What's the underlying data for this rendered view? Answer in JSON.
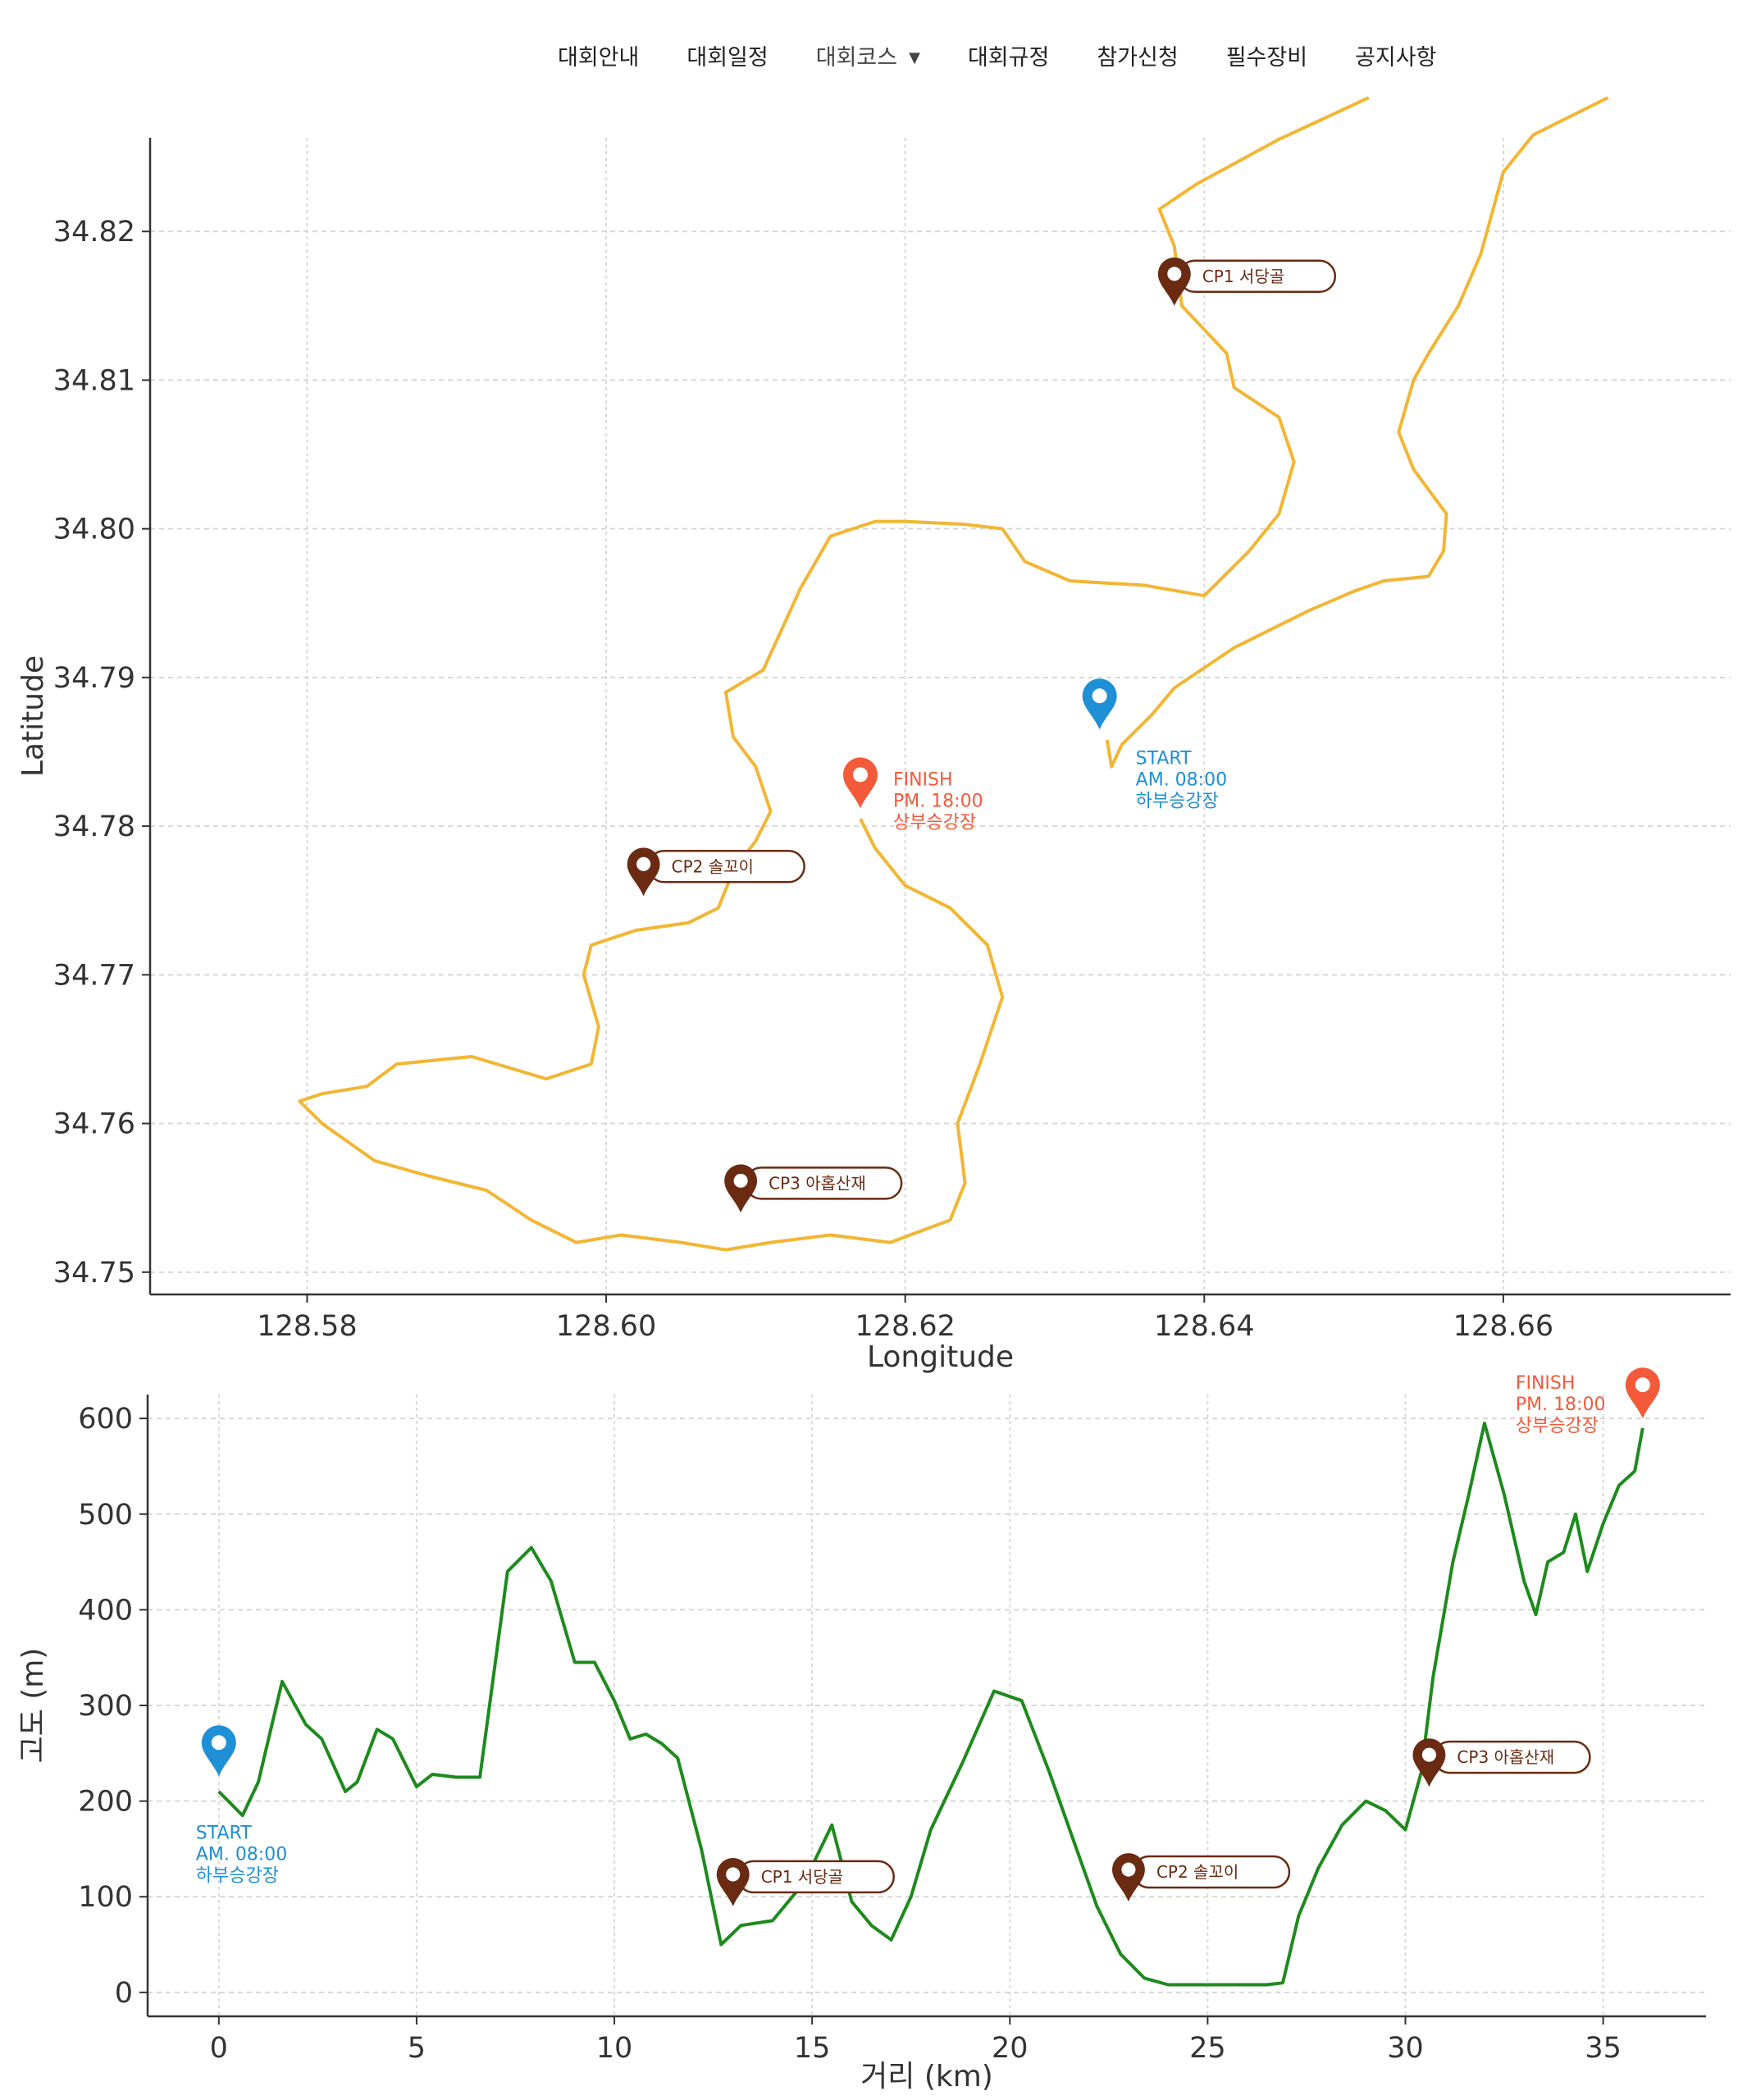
{
  "nav": {
    "items": [
      "대회안내",
      "대회일정",
      "대회코스",
      "대회규정",
      "참가신청",
      "필수장비",
      "공지사항"
    ],
    "active": "대회코스"
  },
  "colors": {
    "route": "#f2b634",
    "elevation": "#1e8a1e",
    "start": "#1f8fd6",
    "finish": "#f25a3a",
    "cp": "#6b2a12"
  },
  "chart_data": [
    {
      "type": "line",
      "xlabel": "Longitude",
      "ylabel": "Latitude",
      "xlim": [
        128.5695,
        128.6752
      ],
      "ylim": [
        34.7485,
        34.8263
      ],
      "xticks": [
        "128.58",
        "128.60",
        "128.62",
        "128.64",
        "128.66"
      ],
      "yticks": [
        "34.75",
        "34.76",
        "34.77",
        "34.78",
        "34.79",
        "34.80",
        "34.81",
        "34.82"
      ],
      "grid": true,
      "series": [
        {
          "values": [
            [
              128.6335,
              34.7858
            ],
            [
              128.6338,
              34.784
            ],
            [
              128.6345,
              34.7855
            ],
            [
              128.6365,
              34.7875
            ],
            [
              128.638,
              34.7893
            ],
            [
              128.642,
              34.792
            ],
            [
              128.647,
              34.7945
            ],
            [
              128.65,
              34.7958
            ],
            [
              128.652,
              34.7965
            ],
            [
              128.655,
              34.7968
            ],
            [
              128.656,
              34.7985
            ],
            [
              128.6562,
              34.801
            ],
            [
              128.654,
              34.804
            ],
            [
              128.653,
              34.8065
            ],
            [
              128.654,
              34.81
            ],
            [
              128.655,
              34.8118
            ],
            [
              128.657,
              34.815
            ],
            [
              128.6585,
              34.8185
            ],
            [
              128.66,
              34.824
            ],
            [
              128.662,
              34.8265
            ],
            [
              128.667,
              34.829
            ]
          ]
        },
        {
          "values": [
            [
              128.651,
              34.829
            ],
            [
              128.645,
              34.8262
            ],
            [
              128.6395,
              34.8232
            ],
            [
              128.637,
              34.8215
            ],
            [
              128.638,
              34.819
            ],
            [
              128.6385,
              34.815
            ],
            [
              128.6415,
              34.8118
            ],
            [
              128.642,
              34.8095
            ],
            [
              128.645,
              34.8075
            ],
            [
              128.646,
              34.8045
            ],
            [
              128.645,
              34.801
            ],
            [
              128.643,
              34.7985
            ],
            [
              128.64,
              34.7955
            ],
            [
              128.636,
              34.7962
            ],
            [
              128.631,
              34.7965
            ],
            [
              128.628,
              34.7978
            ],
            [
              128.6265,
              34.8
            ],
            [
              128.624,
              34.8003
            ],
            [
              128.62,
              34.8005
            ],
            [
              128.618,
              34.8005
            ],
            [
              128.615,
              34.7995
            ],
            [
              128.613,
              34.796
            ],
            [
              128.6105,
              34.7905
            ],
            [
              128.608,
              34.789
            ],
            [
              128.6085,
              34.786
            ],
            [
              128.61,
              34.784
            ],
            [
              128.611,
              34.781
            ],
            [
              128.61,
              34.779
            ],
            [
              128.6085,
              34.777
            ],
            [
              128.6075,
              34.7745
            ],
            [
              128.6055,
              34.7735
            ],
            [
              128.602,
              34.773
            ],
            [
              128.599,
              34.772
            ],
            [
              128.5985,
              34.77
            ],
            [
              128.5995,
              34.7665
            ],
            [
              128.599,
              34.764
            ],
            [
              128.596,
              34.763
            ],
            [
              128.591,
              34.7645
            ],
            [
              128.586,
              34.764
            ],
            [
              128.584,
              34.7625
            ],
            [
              128.581,
              34.762
            ],
            [
              128.5795,
              34.7615
            ],
            [
              128.581,
              34.76
            ],
            [
              128.5845,
              34.7575
            ],
            [
              128.588,
              34.7565
            ],
            [
              128.592,
              34.7555
            ],
            [
              128.595,
              34.7535
            ],
            [
              128.598,
              34.752
            ],
            [
              128.601,
              34.7525
            ],
            [
              128.605,
              34.752
            ],
            [
              128.608,
              34.7515
            ],
            [
              128.611,
              34.752
            ],
            [
              128.615,
              34.7525
            ],
            [
              128.619,
              34.752
            ],
            [
              128.623,
              34.7535
            ],
            [
              128.624,
              34.756
            ],
            [
              128.6235,
              34.76
            ],
            [
              128.625,
              34.764
            ],
            [
              128.6265,
              34.7685
            ],
            [
              128.6255,
              34.772
            ],
            [
              128.623,
              34.7745
            ],
            [
              128.62,
              34.776
            ],
            [
              128.618,
              34.7785
            ],
            [
              128.617,
              34.7805
            ]
          ]
        }
      ],
      "markers": [
        {
          "kind": "start",
          "x": 128.633,
          "y": 34.7865,
          "lines": [
            "START",
            "AM. 08:00",
            "하부승강장"
          ]
        },
        {
          "kind": "finish",
          "x": 128.617,
          "y": 34.7812,
          "lines": [
            "FINISH",
            "PM. 18:00",
            "상부승강장"
          ]
        },
        {
          "kind": "cp",
          "x": 128.638,
          "y": 34.815,
          "label": "CP1 서당골"
        },
        {
          "kind": "cp",
          "x": 128.6025,
          "y": 34.7753,
          "label": "CP2 솔꼬이"
        },
        {
          "kind": "cp",
          "x": 128.609,
          "y": 34.754,
          "label": "CP3 아홉산재"
        }
      ]
    },
    {
      "type": "line",
      "xlabel": "거리 (km)",
      "ylabel": "고도 (m)",
      "xlim": [
        -1.8,
        37.6
      ],
      "ylim": [
        -25,
        625
      ],
      "xticks": [
        "0",
        "5",
        "10",
        "15",
        "20",
        "25",
        "30",
        "35"
      ],
      "yticks": [
        "0",
        "100",
        "200",
        "300",
        "400",
        "500",
        "600"
      ],
      "grid": true,
      "series": [
        {
          "x": [
            0,
            0.6,
            1.0,
            1.6,
            2.2,
            2.6,
            3.2,
            3.5,
            4.0,
            4.4,
            5.0,
            5.4,
            6.0,
            6.6,
            7.3,
            7.9,
            8.4,
            9.0,
            9.5,
            10.0,
            10.4,
            10.8,
            11.2,
            11.6,
            12.2,
            12.7,
            13.2,
            14.0,
            14.8,
            15.5,
            16.0,
            16.5,
            17.0,
            17.5,
            18.0,
            18.8,
            19.6,
            20.3,
            21.0,
            21.6,
            22.2,
            22.8,
            23.4,
            24.0,
            24.8,
            25.5,
            26.0,
            26.5,
            26.9,
            27.3,
            27.8,
            28.4,
            29.0,
            29.5,
            30.0,
            30.4,
            30.7,
            31.2,
            31.6,
            32.0,
            32.5,
            33.0,
            33.3,
            33.6,
            34.0,
            34.3,
            34.6,
            35.0,
            35.4,
            35.8,
            36.0
          ],
          "values": [
            210,
            185,
            220,
            325,
            280,
            265,
            210,
            220,
            275,
            265,
            215,
            228,
            225,
            225,
            440,
            465,
            430,
            345,
            345,
            305,
            265,
            270,
            260,
            245,
            150,
            50,
            70,
            75,
            115,
            175,
            95,
            70,
            55,
            100,
            170,
            240,
            315,
            305,
            230,
            160,
            90,
            40,
            15,
            8,
            8,
            8,
            8,
            8,
            10,
            80,
            130,
            175,
            200,
            190,
            170,
            230,
            330,
            450,
            520,
            595,
            520,
            430,
            395,
            450,
            460,
            500,
            440,
            490,
            530,
            545,
            590
          ]
        }
      ],
      "markers": [
        {
          "kind": "start",
          "x": 0,
          "y": 226,
          "lines": [
            "START",
            "AM. 08:00",
            "하부승강장"
          ]
        },
        {
          "kind": "finish",
          "x": 36.0,
          "y": 600,
          "lines": [
            "FINISH",
            "PM. 18:00",
            "상부승강장"
          ]
        },
        {
          "kind": "cp",
          "x": 13.0,
          "y": 90,
          "label": "CP1 서당골"
        },
        {
          "kind": "cp",
          "x": 23.0,
          "y": 95,
          "label": "CP2 솔꼬이"
        },
        {
          "kind": "cp",
          "x": 30.6,
          "y": 215,
          "label": "CP3 아홉산재"
        }
      ]
    }
  ]
}
